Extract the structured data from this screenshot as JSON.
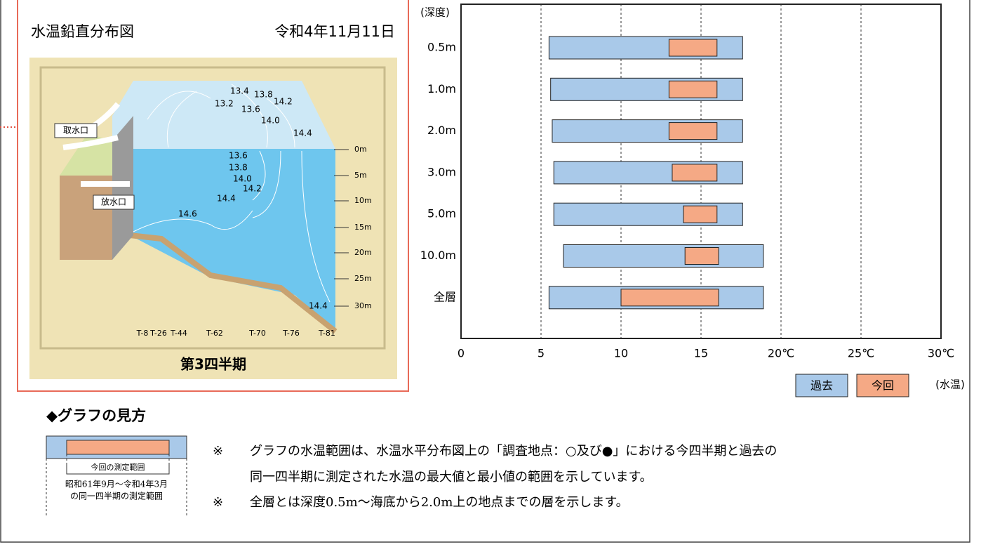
{
  "diagram": {
    "title": "水温鉛直分布図",
    "date": "令和4年11月11日",
    "intake": "取水口",
    "outlet": "放水口",
    "quarter": "第3四半期",
    "contour_labels": [
      "13.4",
      "13.8",
      "13.2",
      "13.6",
      "14.2",
      "14.0",
      "14.4",
      "13.6",
      "13.8",
      "14.0",
      "14.2",
      "14.4",
      "14.6",
      "14.4"
    ],
    "depth_labels": [
      "0m",
      "5m",
      "10m",
      "15m",
      "20m",
      "25m",
      "30m"
    ],
    "stations": [
      "T-8",
      "T-26",
      "T-44",
      "T-62",
      "T-70",
      "T-76",
      "T-81"
    ]
  },
  "guide": {
    "heading": "◆グラフの見方",
    "current_range": "今回の測定範囲",
    "past_range_1": "昭和61年9月～令和4年3月",
    "past_range_2": "の同一四半期の測定範囲",
    "notes": [
      {
        "mark": "※",
        "lines": [
          "グラフの水温範囲は、水温水平分布図上の「調査地点：○及び●」における今四半期と過去の",
          "同一四半期に測定された水温の最大値と最小値の範囲を示しています。"
        ]
      },
      {
        "mark": "※",
        "lines": [
          "全層とは深度0.5m～海底から2.0m上の地点までの層を示します。"
        ]
      }
    ]
  },
  "chart_data": {
    "type": "range-bar",
    "y_label": "(深度)",
    "x_label": "(水温)",
    "categories": [
      "0.5m",
      "1.0m",
      "2.0m",
      "3.0m",
      "5.0m",
      "10.0m",
      "全層"
    ],
    "series": [
      {
        "name": "過去",
        "color": "#a9c9e9",
        "values": [
          [
            5.5,
            17.6
          ],
          [
            5.6,
            17.6
          ],
          [
            5.7,
            17.6
          ],
          [
            5.8,
            17.6
          ],
          [
            5.8,
            17.6
          ],
          [
            6.4,
            18.9
          ],
          [
            5.5,
            18.9
          ]
        ]
      },
      {
        "name": "今回",
        "color": "#f5a985",
        "values": [
          [
            13.0,
            16.0
          ],
          [
            13.0,
            16.0
          ],
          [
            13.0,
            16.0
          ],
          [
            13.2,
            16.0
          ],
          [
            13.9,
            16.0
          ],
          [
            14.0,
            16.1
          ],
          [
            10.0,
            16.1
          ]
        ]
      }
    ],
    "xlim": [
      0,
      30
    ],
    "xticks": [
      0,
      5,
      10,
      15,
      {
        "value": 20,
        "label": "20℃"
      },
      {
        "value": 25,
        "label": "25℃"
      },
      {
        "value": 30,
        "label": "30℃"
      }
    ],
    "grid": true
  }
}
